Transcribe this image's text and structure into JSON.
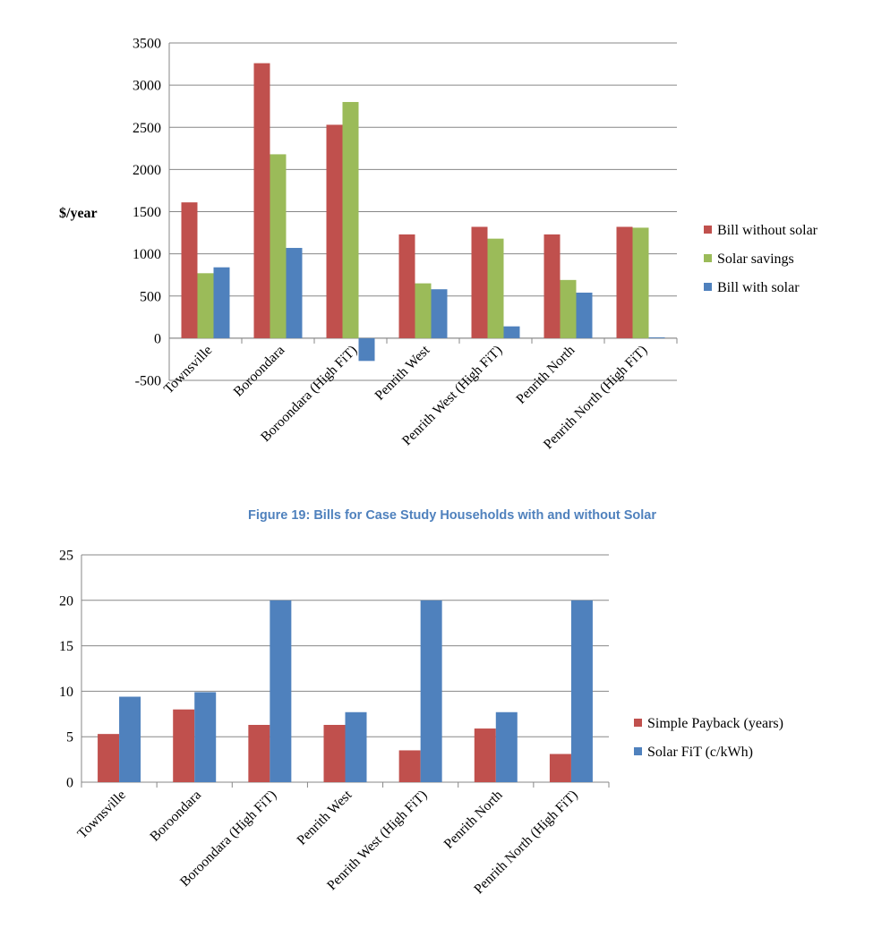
{
  "figure_caption": "Figure 19: Bills for Case Study Households with and without Solar",
  "colors": {
    "red": "#c0504d",
    "green": "#9bbb59",
    "blue": "#4f81bd",
    "caption": "#4f81bd"
  },
  "chart_data": [
    {
      "type": "bar",
      "title": "",
      "xlabel": "",
      "ylabel": "$/year",
      "ylim": [
        -500,
        3500
      ],
      "yticks": [
        3500,
        3000,
        2500,
        2000,
        1500,
        1000,
        500,
        0,
        -500
      ],
      "grid": true,
      "legend_position": "right",
      "categories": [
        "Townsville",
        "Boroondara",
        "Boroondara (High FiT)",
        "Penrith West",
        "Penrith West (High FiT)",
        "Penrith North",
        "Penrith North (High FiT)"
      ],
      "series": [
        {
          "name": "Bill without solar",
          "color": "#c0504d",
          "values": [
            1610,
            3260,
            2530,
            1230,
            1320,
            1230,
            1320
          ]
        },
        {
          "name": "Solar savings",
          "color": "#9bbb59",
          "values": [
            770,
            2180,
            2800,
            650,
            1180,
            690,
            1310
          ]
        },
        {
          "name": "Bill with solar",
          "color": "#4f81bd",
          "values": [
            840,
            1070,
            -270,
            580,
            140,
            540,
            10
          ]
        }
      ]
    },
    {
      "type": "bar",
      "title": "",
      "xlabel": "",
      "ylabel": "",
      "ylim": [
        0,
        25
      ],
      "yticks": [
        25,
        20,
        15,
        10,
        5,
        0
      ],
      "grid": true,
      "legend_position": "right",
      "categories": [
        "Townsville",
        "Boroondara",
        "Boroondara (High FiT)",
        "Penrith West",
        "Penrith West (High FiT)",
        "Penrith North",
        "Penrith North (High FiT)"
      ],
      "series": [
        {
          "name": "Simple Payback (years)",
          "color": "#c0504d",
          "values": [
            5.3,
            8.0,
            6.3,
            6.3,
            3.5,
            5.9,
            3.1
          ]
        },
        {
          "name": "Solar FiT (c/kWh)",
          "color": "#4f81bd",
          "values": [
            9.4,
            9.9,
            20,
            7.7,
            20,
            7.7,
            20
          ]
        }
      ]
    }
  ]
}
